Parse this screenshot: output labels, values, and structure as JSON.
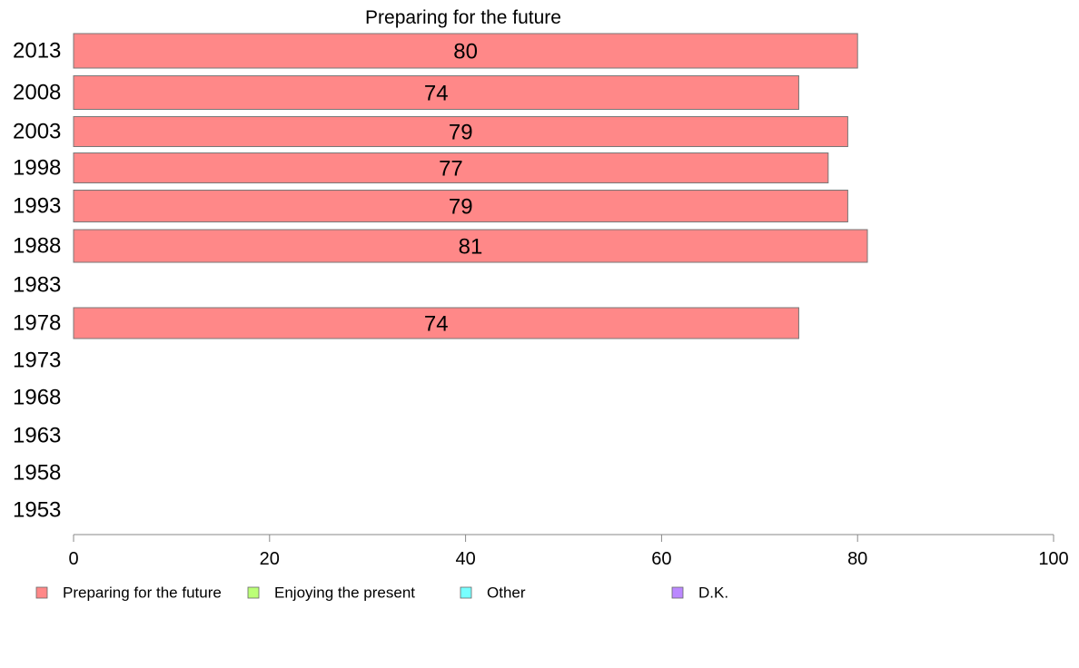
{
  "chart_data": {
    "type": "bar",
    "orientation": "horizontal",
    "title": "Preparing for the future",
    "categories": [
      "2013",
      "2008",
      "2003",
      "1998",
      "1993",
      "1988",
      "1983",
      "1978",
      "1973",
      "1968",
      "1963",
      "1958",
      "1953"
    ],
    "series": [
      {
        "name": "Preparing for the future",
        "color": "#ff8888",
        "values": [
          80,
          74,
          79,
          77,
          79,
          81,
          null,
          74,
          null,
          null,
          null,
          null,
          null
        ]
      },
      {
        "name": "Enjoying the present",
        "color": "#bbff77",
        "values": [
          null,
          null,
          null,
          null,
          null,
          null,
          null,
          null,
          null,
          null,
          null,
          null,
          null
        ]
      },
      {
        "name": "Other",
        "color": "#77ffff",
        "values": [
          null,
          null,
          null,
          null,
          null,
          null,
          null,
          null,
          null,
          null,
          null,
          null,
          null
        ]
      },
      {
        "name": "D.K.",
        "color": "#bb88ff",
        "values": [
          null,
          null,
          null,
          null,
          null,
          null,
          null,
          null,
          null,
          null,
          null,
          null,
          null
        ]
      }
    ],
    "xlim": [
      0,
      100
    ],
    "xticks": [
      0,
      20,
      40,
      60,
      80,
      100
    ],
    "grid": false,
    "legend_position": "bottom"
  }
}
